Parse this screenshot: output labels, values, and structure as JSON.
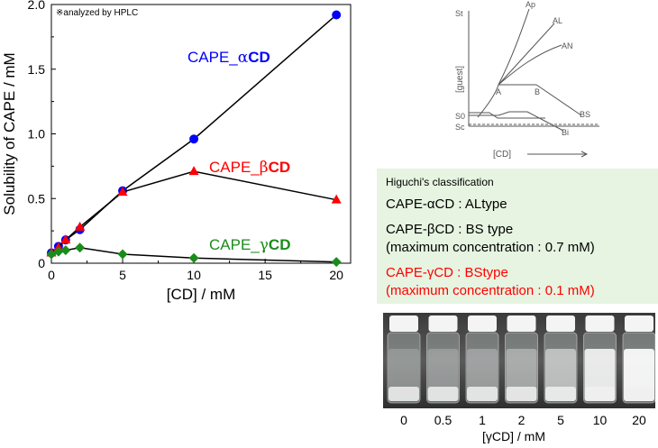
{
  "chart_data": {
    "type": "line",
    "xlabel": "[CD] / mM",
    "ylabel": "Solubility of CAPE / mM",
    "xlim": [
      0,
      21
    ],
    "ylim": [
      0,
      2.0
    ],
    "xticks": [
      "0",
      "5",
      "10",
      "15",
      "20"
    ],
    "yticks": [
      "0",
      "0.5",
      "1.0",
      "1.5",
      "2.0"
    ],
    "note": "※analyzed by HPLC",
    "series": [
      {
        "name": "CAPE_αCD",
        "color": "#0000ff",
        "marker": "circle",
        "x": [
          0,
          0.5,
          1,
          2,
          5,
          10,
          20
        ],
        "y": [
          0.08,
          0.13,
          0.18,
          0.26,
          0.56,
          0.96,
          1.92
        ]
      },
      {
        "name": "CAPE_βCD",
        "color": "#ff0000",
        "marker": "triangle",
        "x": [
          0,
          0.5,
          1,
          2,
          5,
          10,
          20
        ],
        "y": [
          0.08,
          0.12,
          0.18,
          0.28,
          0.55,
          0.71,
          0.49
        ]
      },
      {
        "name": "CAPE_γCD",
        "color": "#1a8c1a",
        "marker": "diamond",
        "x": [
          0,
          0.5,
          1,
          2,
          5,
          10,
          20
        ],
        "y": [
          0.07,
          0.09,
          0.1,
          0.12,
          0.07,
          0.04,
          0.01
        ]
      }
    ],
    "legend": [
      {
        "prefix": "CAPE_",
        "greek": "α",
        "suffix": "CD",
        "color": "#0000ff"
      },
      {
        "prefix": "CAPE_",
        "greek": "β",
        "suffix": "CD",
        "color": "#ff0000"
      },
      {
        "prefix": "CAPE_",
        "greek": "γ",
        "suffix": "CD",
        "color": "#1a8c1a"
      }
    ]
  },
  "diagram": {
    "ylabel": "[guest]",
    "xlabel": "[CD]",
    "labels": {
      "st": "St",
      "ap": "Ap",
      "al": "AL",
      "an": "AN",
      "a": "A",
      "b": "B",
      "bs": "BS",
      "bi": "Bi",
      "s0": "S0",
      "sc": "Sc"
    }
  },
  "classification": {
    "title": "Higuchi's classification",
    "alpha": "CAPE-αCD : ALtype",
    "beta1": "CAPE-βCD : BS type",
    "beta2": "(maximum concentration : 0.7 mM)",
    "gamma1": "CAPE-γCD : BStype",
    "gamma2": "(maximum concentration : 0.1 mM)"
  },
  "photo": {
    "labels": [
      "0",
      "0.5",
      "1",
      "2",
      "5",
      "10",
      "20"
    ],
    "xlabel": "[γCD] / mM"
  }
}
